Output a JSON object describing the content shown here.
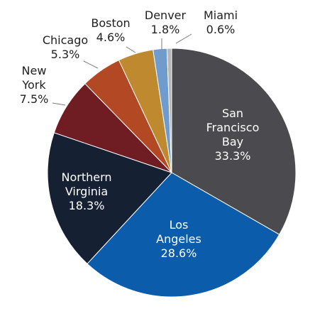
{
  "chart_data": {
    "type": "pie",
    "title": "",
    "categories": [
      "San Francisco Bay",
      "Los Angeles",
      "Northern Virginia",
      "New York",
      "Chicago",
      "Boston",
      "Denver",
      "Miami"
    ],
    "values": [
      33.3,
      28.6,
      18.3,
      7.5,
      5.3,
      4.6,
      1.8,
      0.6
    ],
    "value_labels": [
      "33.3%",
      "28.6%",
      "18.3%",
      "7.5%",
      "5.3%",
      "4.6%",
      "1.8%",
      "0.6%"
    ],
    "label_lines": [
      [
        "San",
        "Francisco",
        "Bay"
      ],
      [
        "Los",
        "Angeles"
      ],
      [
        "Northern",
        "Virginia"
      ],
      [
        "New",
        "York"
      ],
      [
        "Chicago"
      ],
      [
        "Boston"
      ],
      [
        "Denver"
      ],
      [
        "Miami"
      ]
    ],
    "colors": [
      "#4b4b4f",
      "#0b5cab",
      "#162033",
      "#6f1d22",
      "#b34825",
      "#bf8a2f",
      "#6f9ccd",
      "#b7b7b7"
    ],
    "start_angle_degrees": 0,
    "direction": "clockwise",
    "legend": "none",
    "labels_on_chart": true
  }
}
